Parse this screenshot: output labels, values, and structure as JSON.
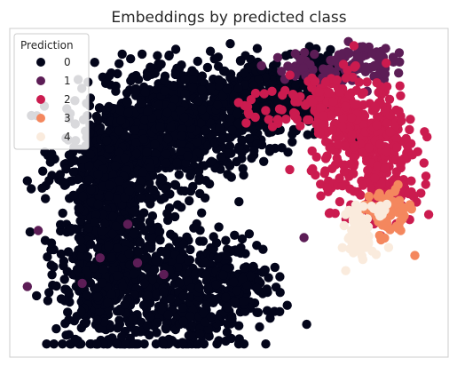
{
  "chart_data": {
    "type": "scatter",
    "title": "Embeddings by predicted class",
    "xlabel": "",
    "ylabel": "",
    "grid": false,
    "axes_ticks_visible": false,
    "xlim": [
      0,
      100
    ],
    "ylim": [
      0,
      100
    ],
    "legend": {
      "title": "Prediction",
      "placement": "top-left",
      "entries": [
        "0",
        "1",
        "2",
        "3",
        "4"
      ]
    },
    "colors": {
      "0": "#03051a",
      "1": "#5c1d56",
      "2": "#cb1b4f",
      "3": "#f4875e",
      "4": "#faebdd"
    },
    "plot_frame_color": "#cccccc",
    "series": [
      {
        "class": "0",
        "color": "#03051a",
        "region": "U-shaped arc: left column plus upper band",
        "regions": [
          {
            "cx": 22,
            "cy": 34,
            "sx": 6,
            "sy": 17,
            "n": 650
          },
          {
            "cx": 40,
            "cy": 72,
            "sx": 9,
            "sy": 9,
            "n": 600
          },
          {
            "cx": 26,
            "cy": 62,
            "sx": 7,
            "sy": 9,
            "n": 350
          },
          {
            "cx": 60,
            "cy": 79,
            "sx": 7,
            "sy": 6,
            "n": 300
          },
          {
            "cx": 38,
            "cy": 20,
            "sx": 9,
            "sy": 10,
            "n": 450
          },
          {
            "cx": 52,
            "cy": 24,
            "sx": 4,
            "sy": 6,
            "n": 120
          },
          {
            "cx": 70,
            "cy": 88,
            "sx": 3,
            "sy": 3,
            "n": 60
          }
        ]
      },
      {
        "class": "1",
        "color": "#5c1d56",
        "region": "top right of arc",
        "regions": [
          {
            "cx": 79,
            "cy": 90,
            "sx": 4,
            "sy": 3,
            "n": 80
          },
          {
            "cx": 67,
            "cy": 87,
            "sx": 4,
            "sy": 3,
            "n": 30
          },
          {
            "cx": 31,
            "cy": 40,
            "sx": 15,
            "sy": 20,
            "n": 8
          }
        ]
      },
      {
        "class": "2",
        "color": "#cb1b4f",
        "region": "right side of arc",
        "regions": [
          {
            "cx": 81,
            "cy": 65,
            "sx": 6,
            "sy": 9,
            "n": 330
          },
          {
            "cx": 86,
            "cy": 52,
            "sx": 3,
            "sy": 5,
            "n": 120
          },
          {
            "cx": 72,
            "cy": 78,
            "sx": 5,
            "sy": 4,
            "n": 80
          },
          {
            "cx": 60,
            "cy": 75,
            "sx": 6,
            "sy": 4,
            "n": 25
          }
        ]
      },
      {
        "class": "3",
        "color": "#f4875e",
        "region": "lower right",
        "regions": [
          {
            "cx": 86,
            "cy": 43,
            "sx": 2.5,
            "sy": 4,
            "n": 70
          }
        ]
      },
      {
        "class": "4",
        "color": "#faebdd",
        "region": "lower right tail",
        "regions": [
          {
            "cx": 80,
            "cy": 37,
            "sx": 1.5,
            "sy": 4,
            "n": 70
          },
          {
            "cx": 84,
            "cy": 45,
            "sx": 1.5,
            "sy": 2,
            "n": 12
          }
        ]
      }
    ]
  }
}
